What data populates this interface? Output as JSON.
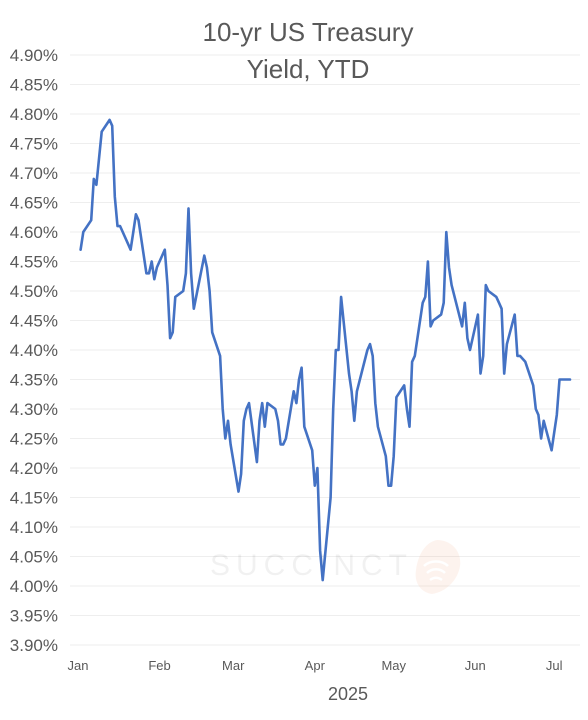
{
  "chart_data": {
    "type": "line",
    "title": [
      "10-yr US Treasury",
      "Yield, YTD"
    ],
    "xlabel": "2025",
    "ylabel": "",
    "ylim": [
      3.9,
      4.9
    ],
    "yticks": [
      3.9,
      3.95,
      4.0,
      4.05,
      4.1,
      4.15,
      4.2,
      4.25,
      4.3,
      4.35,
      4.4,
      4.45,
      4.5,
      4.55,
      4.6,
      4.65,
      4.7,
      4.75,
      4.8,
      4.85,
      4.9
    ],
    "ytick_labels": [
      "3.90%",
      "3.95%",
      "4.00%",
      "4.05%",
      "4.10%",
      "4.15%",
      "4.20%",
      "4.25%",
      "4.30%",
      "4.35%",
      "4.40%",
      "4.45%",
      "4.50%",
      "4.55%",
      "4.60%",
      "4.65%",
      "4.70%",
      "4.75%",
      "4.80%",
      "4.85%",
      "4.90%"
    ],
    "xlim": [
      "2025-01-01",
      "2025-07-07"
    ],
    "xticks": [
      {
        "date": "2025-01-01",
        "label": "Jan"
      },
      {
        "date": "2025-02-01",
        "label": "Feb"
      },
      {
        "date": "2025-03-01",
        "label": "Mar"
      },
      {
        "date": "2025-04-01",
        "label": "Apr"
      },
      {
        "date": "2025-05-01",
        "label": "May"
      },
      {
        "date": "2025-06-01",
        "label": "Jun"
      },
      {
        "date": "2025-07-01",
        "label": "Jul"
      }
    ],
    "grid": true,
    "legend": false,
    "series": [
      {
        "color": "#4472C4",
        "x": [
          "2025-01-02",
          "2025-01-03",
          "2025-01-06",
          "2025-01-07",
          "2025-01-08",
          "2025-01-10",
          "2025-01-13",
          "2025-01-14",
          "2025-01-15",
          "2025-01-16",
          "2025-01-17",
          "2025-01-21",
          "2025-01-22",
          "2025-01-23",
          "2025-01-24",
          "2025-01-27",
          "2025-01-28",
          "2025-01-29",
          "2025-01-30",
          "2025-01-31",
          "2025-02-03",
          "2025-02-04",
          "2025-02-05",
          "2025-02-06",
          "2025-02-07",
          "2025-02-10",
          "2025-02-11",
          "2025-02-12",
          "2025-02-13",
          "2025-02-14",
          "2025-02-18",
          "2025-02-19",
          "2025-02-20",
          "2025-02-21",
          "2025-02-24",
          "2025-02-25",
          "2025-02-26",
          "2025-02-27",
          "2025-02-28",
          "2025-03-03",
          "2025-03-04",
          "2025-03-05",
          "2025-03-06",
          "2025-03-07",
          "2025-03-10",
          "2025-03-11",
          "2025-03-12",
          "2025-03-13",
          "2025-03-14",
          "2025-03-17",
          "2025-03-18",
          "2025-03-19",
          "2025-03-20",
          "2025-03-21",
          "2025-03-24",
          "2025-03-25",
          "2025-03-26",
          "2025-03-27",
          "2025-03-28",
          "2025-03-31",
          "2025-04-01",
          "2025-04-02",
          "2025-04-03",
          "2025-04-04",
          "2025-04-07",
          "2025-04-08",
          "2025-04-09",
          "2025-04-10",
          "2025-04-11",
          "2025-04-14",
          "2025-04-15",
          "2025-04-16",
          "2025-04-17",
          "2025-04-21",
          "2025-04-22",
          "2025-04-23",
          "2025-04-24",
          "2025-04-25",
          "2025-04-28",
          "2025-04-29",
          "2025-04-30",
          "2025-05-01",
          "2025-05-02",
          "2025-05-05",
          "2025-05-06",
          "2025-05-07",
          "2025-05-08",
          "2025-05-09",
          "2025-05-12",
          "2025-05-13",
          "2025-05-14",
          "2025-05-15",
          "2025-05-16",
          "2025-05-19",
          "2025-05-20",
          "2025-05-21",
          "2025-05-22",
          "2025-05-23",
          "2025-05-27",
          "2025-05-28",
          "2025-05-29",
          "2025-05-30",
          "2025-06-02",
          "2025-06-03",
          "2025-06-04",
          "2025-06-05",
          "2025-06-06",
          "2025-06-09",
          "2025-06-10",
          "2025-06-11",
          "2025-06-12",
          "2025-06-13",
          "2025-06-16",
          "2025-06-17",
          "2025-06-18",
          "2025-06-20",
          "2025-06-23",
          "2025-06-24",
          "2025-06-25",
          "2025-06-26",
          "2025-06-27",
          "2025-06-30",
          "2025-07-01",
          "2025-07-02",
          "2025-07-03",
          "2025-07-07"
        ],
        "values": [
          4.57,
          4.6,
          4.62,
          4.69,
          4.68,
          4.77,
          4.79,
          4.78,
          4.66,
          4.61,
          4.61,
          4.57,
          4.6,
          4.63,
          4.62,
          4.53,
          4.53,
          4.55,
          4.52,
          4.54,
          4.57,
          4.51,
          4.42,
          4.43,
          4.49,
          4.5,
          4.53,
          4.64,
          4.53,
          4.47,
          4.56,
          4.54,
          4.5,
          4.43,
          4.39,
          4.3,
          4.25,
          4.28,
          4.24,
          4.16,
          4.19,
          4.28,
          4.3,
          4.31,
          4.21,
          4.28,
          4.31,
          4.27,
          4.31,
          4.3,
          4.28,
          4.24,
          4.24,
          4.25,
          4.33,
          4.31,
          4.35,
          4.37,
          4.27,
          4.23,
          4.17,
          4.2,
          4.06,
          4.01,
          4.15,
          4.3,
          4.4,
          4.4,
          4.49,
          4.36,
          4.33,
          4.28,
          4.33,
          4.4,
          4.41,
          4.39,
          4.31,
          4.27,
          4.22,
          4.17,
          4.17,
          4.22,
          4.32,
          4.34,
          4.3,
          4.27,
          4.38,
          4.39,
          4.48,
          4.49,
          4.55,
          4.44,
          4.45,
          4.46,
          4.48,
          4.6,
          4.54,
          4.51,
          4.44,
          4.48,
          4.42,
          4.4,
          4.46,
          4.36,
          4.39,
          4.51,
          4.5,
          4.49,
          4.48,
          4.47,
          4.36,
          4.41,
          4.46,
          4.39,
          4.39,
          4.38,
          4.34,
          4.3,
          4.29,
          4.25,
          4.28,
          4.23,
          4.26,
          4.29,
          4.35,
          4.35
        ]
      }
    ]
  },
  "watermark": {
    "text": "SUCCINCT"
  }
}
